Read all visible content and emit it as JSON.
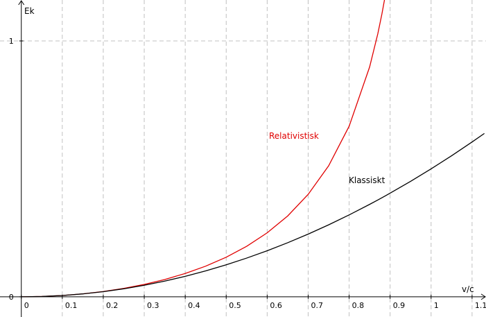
{
  "chart_data": {
    "type": "line",
    "x_label": "v/c",
    "y_label": "Ek",
    "x": [
      0,
      0.05,
      0.1,
      0.15,
      0.2,
      0.25,
      0.3,
      0.35,
      0.4,
      0.45,
      0.5,
      0.55,
      0.6,
      0.65,
      0.7,
      0.75,
      0.8,
      0.85,
      0.87,
      0.88,
      0.89,
      0.9,
      0.95,
      1.0,
      1.05,
      1.1,
      1.13
    ],
    "series": [
      {
        "name": "Relativistisk",
        "color": "#e00000",
        "values": [
          0,
          0.00125,
          0.00504,
          0.01144,
          0.02062,
          0.0328,
          0.04828,
          0.06752,
          0.09109,
          0.11978,
          0.1547,
          0.19737,
          0.25,
          0.3159,
          0.40028,
          0.51186,
          0.66667,
          0.89832,
          1.0282,
          1.1054,
          1.1932,
          null,
          null,
          null,
          null,
          null,
          null
        ]
      },
      {
        "name": "Klassiskt",
        "color": "#000000",
        "values": [
          0,
          0.00125,
          0.005,
          0.01125,
          0.02,
          0.03125,
          0.045,
          0.06125,
          0.08,
          0.10125,
          0.125,
          0.15125,
          0.18,
          0.21125,
          0.245,
          0.28125,
          0.32,
          0.36125,
          0.37845,
          0.3872,
          0.39605,
          0.405,
          0.45125,
          0.5,
          0.55125,
          0.605,
          0.63845
        ]
      }
    ],
    "xlim": [
      -0.052,
      1.134
    ],
    "ylim": [
      -0.079,
      1.16
    ],
    "xticks": [
      0,
      0.1,
      0.2,
      0.3,
      0.4,
      0.5,
      0.6,
      0.7,
      0.8,
      0.9,
      1,
      1.1
    ],
    "yticks": [
      0,
      1
    ],
    "grid": true
  }
}
